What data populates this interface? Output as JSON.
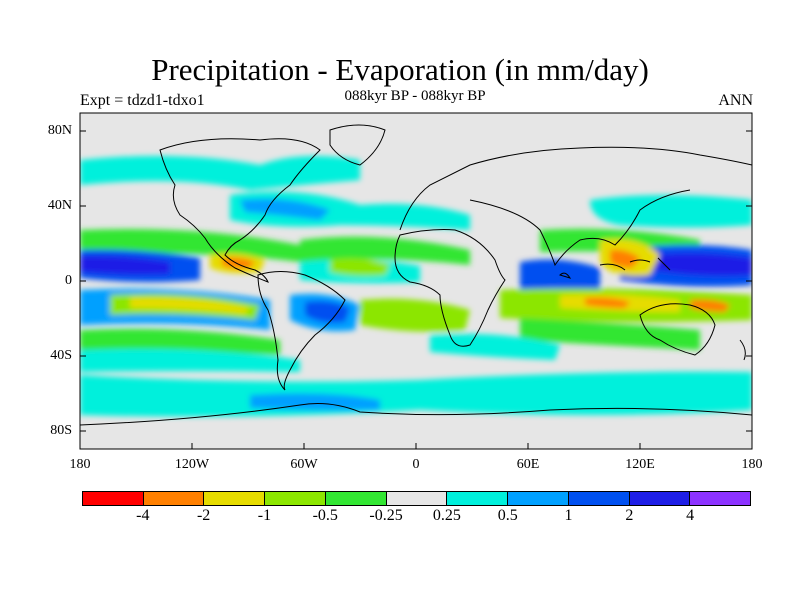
{
  "title": "Precipitation - Evaporation (in mm/day)",
  "subtitle": "088kyr BP - 088kyr BP",
  "left_label": "Expt = tdzd1-tdxo1",
  "right_label": "ANN",
  "lat_labels": [
    "80N",
    "40N",
    "0",
    "40S",
    "80S"
  ],
  "lon_labels": [
    "180",
    "120W",
    "60W",
    "0",
    "60E",
    "120E",
    "180"
  ],
  "colorbar": {
    "colors": [
      "#ff0000",
      "#ff8000",
      "#e6dc00",
      "#8ce600",
      "#32e632",
      "#e6e6e6",
      "#00f0dc",
      "#00a0ff",
      "#0050f0",
      "#1e1ee6",
      "#8c32ff"
    ],
    "labels": [
      "-4",
      "-2",
      "-1",
      "-0.5",
      "-0.25",
      "0.25",
      "0.5",
      "1",
      "2",
      "4"
    ]
  },
  "colors": {
    "ocean_bg": "#e6e6e6",
    "coast": "#000000"
  }
}
